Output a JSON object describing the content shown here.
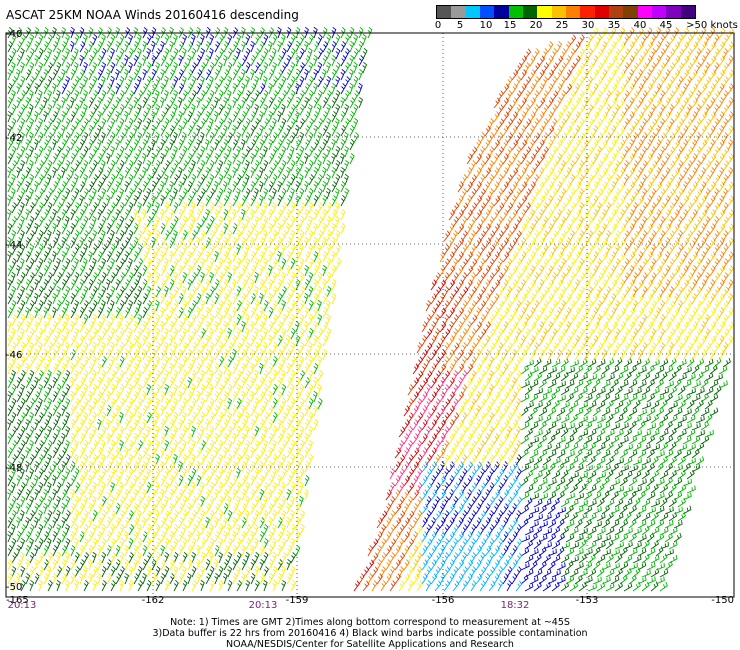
{
  "title": "ASCAT 25KM NOAA Winds 20160416 descending",
  "colorbar": {
    "colors": [
      "#555555",
      "#9a9a9a",
      "#00c8ff",
      "#0050ff",
      "#0000a0",
      "#00c000",
      "#006400",
      "#ffff00",
      "#ffc000",
      "#ff8000",
      "#ff2000",
      "#e00000",
      "#b04010",
      "#804000",
      "#ff00ff",
      "#c000ff",
      "#8000c0",
      "#400080"
    ],
    "tick_labels": [
      "0",
      "5",
      "10",
      "15",
      "20",
      "25",
      "30",
      "35",
      "40",
      "45",
      ">50 knots"
    ]
  },
  "axes": {
    "y_labels": [
      "-40",
      "-42",
      "-44",
      "-46",
      "-48",
      "-50"
    ],
    "x_labels": [
      "-165",
      "-162",
      "-159",
      "-156",
      "-153",
      "-150"
    ]
  },
  "time_labels": [
    "20:13",
    "20:13",
    "18:32"
  ],
  "notes": {
    "line1": "Note: 1) Times are GMT 2)Times along bottom correspond to measurement at ~45S",
    "line2": "3)Data buffer is 22 hrs from 20160416 4) Black wind barbs indicate possible contamination",
    "line3": "NOAA/NESDIS/Center for Satellite Applications and Research"
  },
  "wind_colors": {
    "blue": "#0000c8",
    "green": "#00b400",
    "dark_green": "#006400",
    "yellow": "#ffee00",
    "orange_yellow": "#ffc000",
    "orange": "#ff8000",
    "red_orange": "#e04000",
    "red": "#d00000",
    "pink": "#ff3080",
    "cyan": "#00b0ff",
    "black": "#000000"
  }
}
